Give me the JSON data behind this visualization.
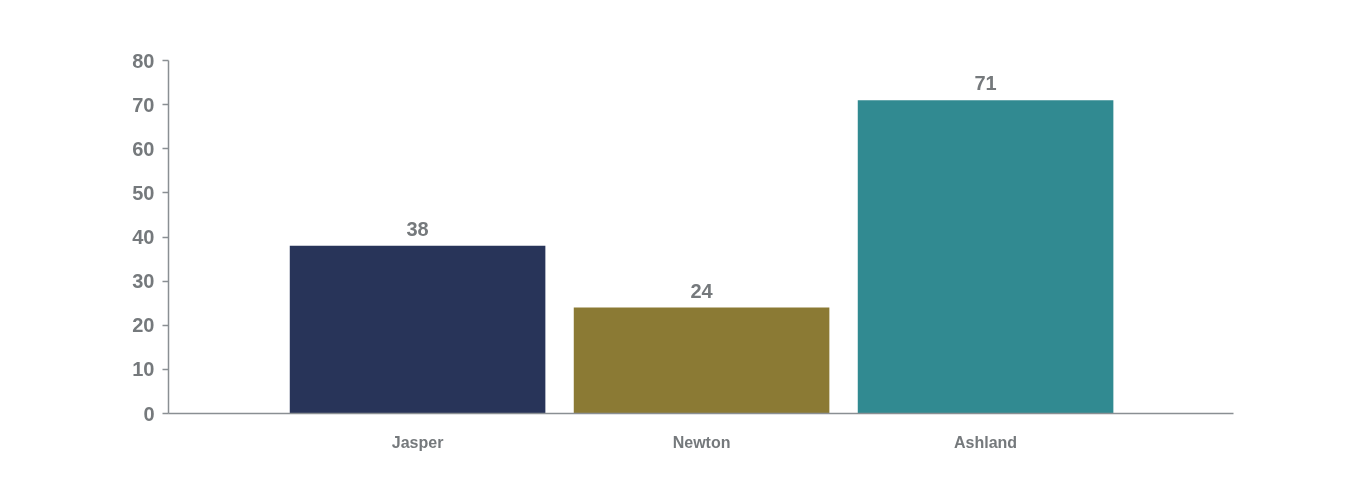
{
  "chart_data": {
    "type": "bar",
    "categories": [
      "Jasper",
      "Newton",
      "Ashland"
    ],
    "values": [
      38,
      24,
      71
    ],
    "colors": [
      "#283459",
      "#8b7a34",
      "#318a91"
    ],
    "ylim": [
      0,
      80
    ],
    "yticks": [
      0,
      10,
      20,
      30,
      40,
      50,
      60,
      70,
      80
    ],
    "data_labels": true
  }
}
